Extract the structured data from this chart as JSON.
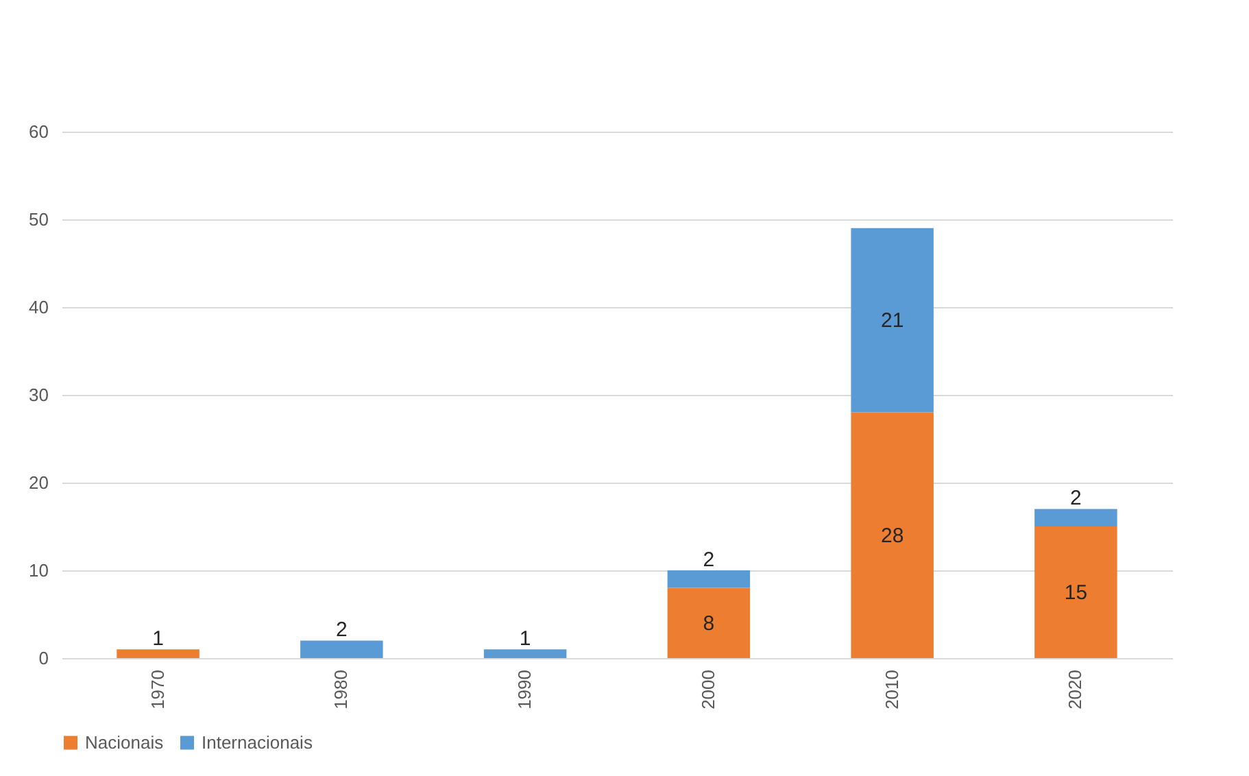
{
  "chart_data": {
    "type": "bar",
    "stacked": true,
    "categories": [
      "1970",
      "1980",
      "1990",
      "2000",
      "2010",
      "2020"
    ],
    "series": [
      {
        "name": "Nacionais",
        "color": "#ed7d31",
        "values": [
          1,
          null,
          null,
          8,
          28,
          15
        ],
        "value_labels": [
          "1",
          null,
          null,
          "8",
          "28",
          "15"
        ]
      },
      {
        "name": "Internacionais",
        "color": "#5b9bd5",
        "values": [
          null,
          2,
          1,
          2,
          21,
          2
        ],
        "value_labels": [
          null,
          "2",
          "1",
          "2",
          "21",
          "2"
        ]
      }
    ],
    "ylim": [
      0,
      60
    ],
    "yticks": [
      0,
      10,
      20,
      30,
      40,
      50,
      60
    ],
    "grid": "y",
    "legend": "bottom"
  }
}
